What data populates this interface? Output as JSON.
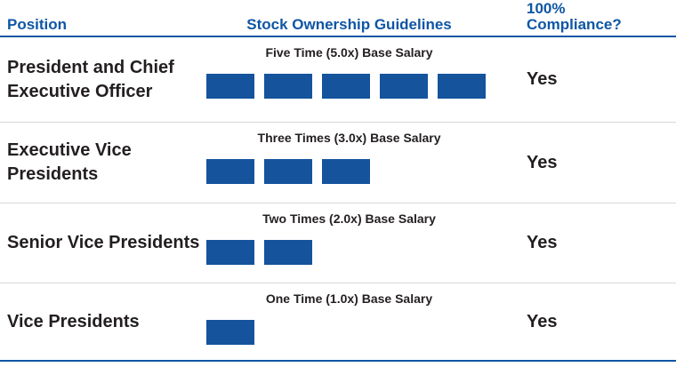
{
  "header": {
    "position": "Position",
    "guidelines": "Stock Ownership Guidelines",
    "compliance_line1": "100%",
    "compliance_line2": "Compliance?"
  },
  "rows": [
    {
      "position": "President and Chief Executive Officer",
      "caption": "Five Time (5.0x) Base Salary",
      "multiple": 5,
      "compliance": "Yes"
    },
    {
      "position": "Executive Vice Presidents",
      "caption": "Three Times (3.0x) Base Salary",
      "multiple": 3,
      "compliance": "Yes"
    },
    {
      "position": "Senior Vice Presidents",
      "caption": "Two Times (2.0x) Base Salary",
      "multiple": 2,
      "compliance": "Yes"
    },
    {
      "position": "Vice Presidents",
      "caption": "One Time (1.0x) Base Salary",
      "multiple": 1,
      "compliance": "Yes"
    }
  ],
  "colors": {
    "brand_blue": "#0f56a4",
    "bar_blue": "#15539d",
    "text_dark": "#231f20",
    "separator_gray": "#d8d8d8"
  },
  "chart_data": {
    "type": "bar",
    "title": "Stock Ownership Guidelines",
    "categories": [
      "President and Chief Executive Officer",
      "Executive Vice Presidents",
      "Senior Vice Presidents",
      "Vice Presidents"
    ],
    "values": [
      5.0,
      3.0,
      2.0,
      1.0
    ],
    "unit": "x Base Salary",
    "value_labels": [
      "Five Time (5.0x) Base Salary",
      "Three Times (3.0x) Base Salary",
      "Two Times (2.0x) Base Salary",
      "One Time (1.0x) Base Salary"
    ],
    "compliance_column_header": "100% Compliance?",
    "compliance": [
      "Yes",
      "Yes",
      "Yes",
      "Yes"
    ],
    "orientation": "horizontal-unit-blocks",
    "legend_position": "none",
    "grid": false
  }
}
